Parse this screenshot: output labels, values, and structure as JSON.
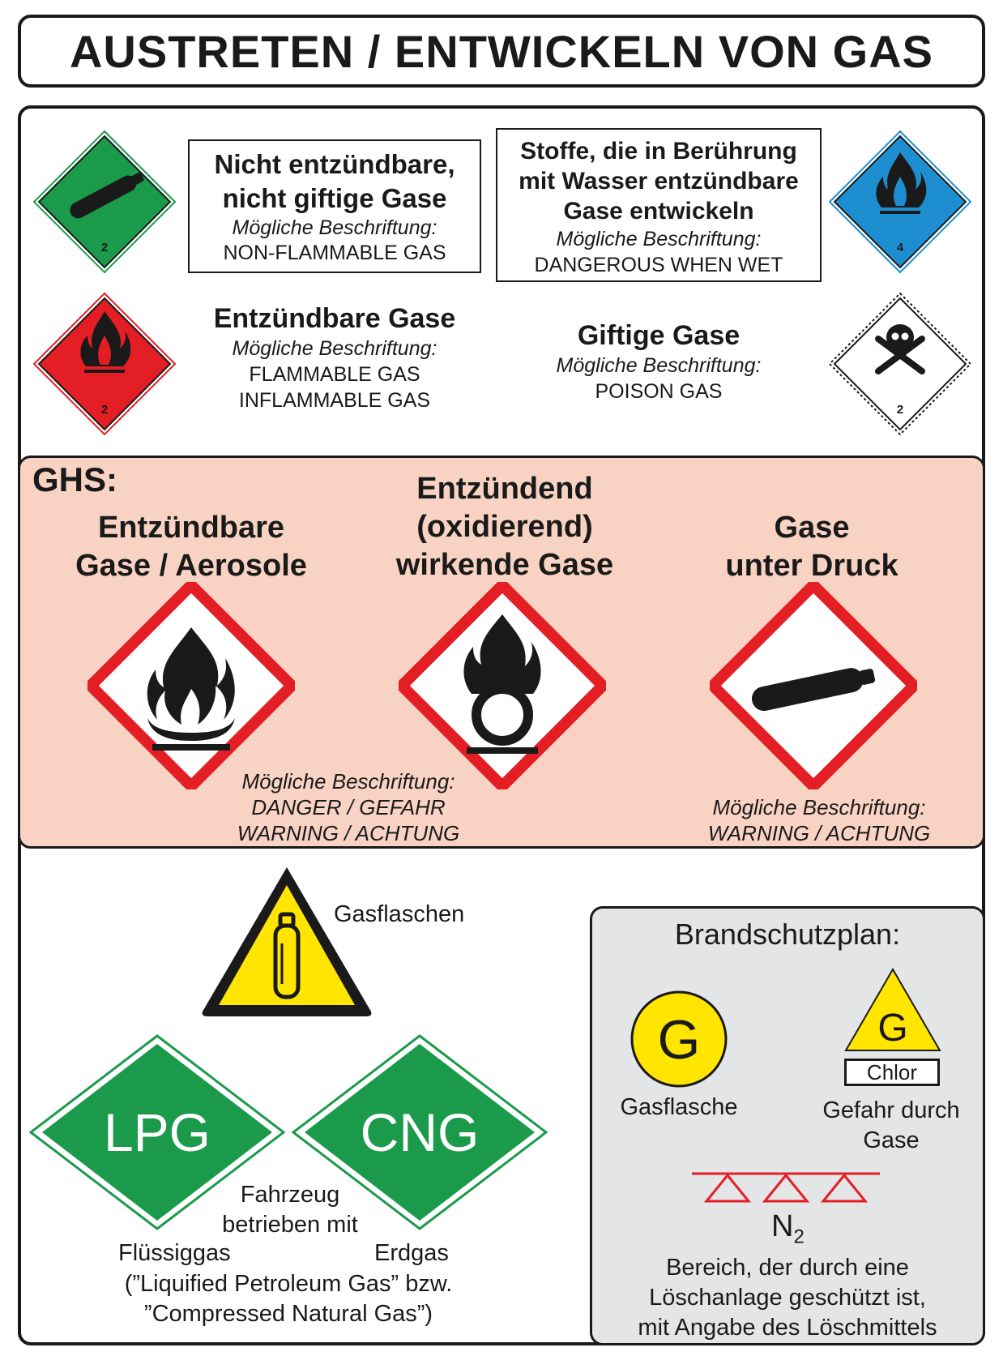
{
  "title": "AUSTRETEN / ENTWICKELN VON GAS",
  "adr": {
    "nonflammable": {
      "line1": "Nicht entzündbare,",
      "line2": "nicht giftige Gase",
      "caption": "Mögliche Beschriftung:",
      "label": "NON-FLAMMABLE GAS",
      "diamond_number": "2",
      "color": "#1a9a4a"
    },
    "water": {
      "line1": "Stoffe, die in Berührung",
      "line2": "mit Wasser entzündbare",
      "line3": "Gase entwickeln",
      "caption": "Mögliche Beschriftung:",
      "label": "DANGEROUS WHEN WET",
      "diamond_number": "4",
      "color": "#1d8ecf"
    },
    "flammable": {
      "title": "Entzündbare Gase",
      "caption": "Mögliche Beschriftung:",
      "label1": "FLAMMABLE GAS",
      "label2": "INFLAMMABLE GAS",
      "diamond_number": "2",
      "color": "#e31e24"
    },
    "poison": {
      "title": "Giftige Gase",
      "caption": "Mögliche Beschriftung:",
      "label": "POISON GAS",
      "diamond_number": "2"
    }
  },
  "ghs": {
    "heading": "GHS:",
    "flammable": {
      "line1": "Entzündbare",
      "line2": "Gase / Aerosole"
    },
    "oxidizing": {
      "line1": "Entzündend",
      "line2": "(oxidierend)",
      "line3": "wirkende Gase"
    },
    "pressure": {
      "line1": "Gase",
      "line2": "unter Druck"
    },
    "caption_left": {
      "caption": "Mögliche Beschriftung:",
      "line1": "DANGER / GEFAHR",
      "line2": "WARNING / ACHTUNG"
    },
    "caption_right": {
      "caption": "Mögliche Beschriftung:",
      "line1": "WARNING / ACHTUNG"
    },
    "frame_color": "#e31e24"
  },
  "warning_sign": {
    "label": "Gasflaschen",
    "color": "#ffe500"
  },
  "vehicle": {
    "lpg": "LPG",
    "cng": "CNG",
    "color": "#1a9a4a",
    "line1": "Fahrzeug",
    "line2": "betrieben mit",
    "lpg_caption": "Flüssiggas",
    "cng_caption": "Erdgas",
    "footnote1": "(”Liquified Petroleum Gas” bzw.",
    "footnote2": "”Compressed Natural Gas”)"
  },
  "brandschutz": {
    "heading": "Brandschutzplan:",
    "circle_letter": "G",
    "circle_label": "Gasflasche",
    "triangle_letter": "G",
    "triangle_box": "Chlor",
    "triangle_label1": "Gefahr durch",
    "triangle_label2": "Gase",
    "extinguisher": "N",
    "extinguisher_sub": "2",
    "desc1": "Bereich, der durch eine",
    "desc2": "Löschanlage geschützt ist,",
    "desc3": "mit Angabe des Löschmittels"
  }
}
